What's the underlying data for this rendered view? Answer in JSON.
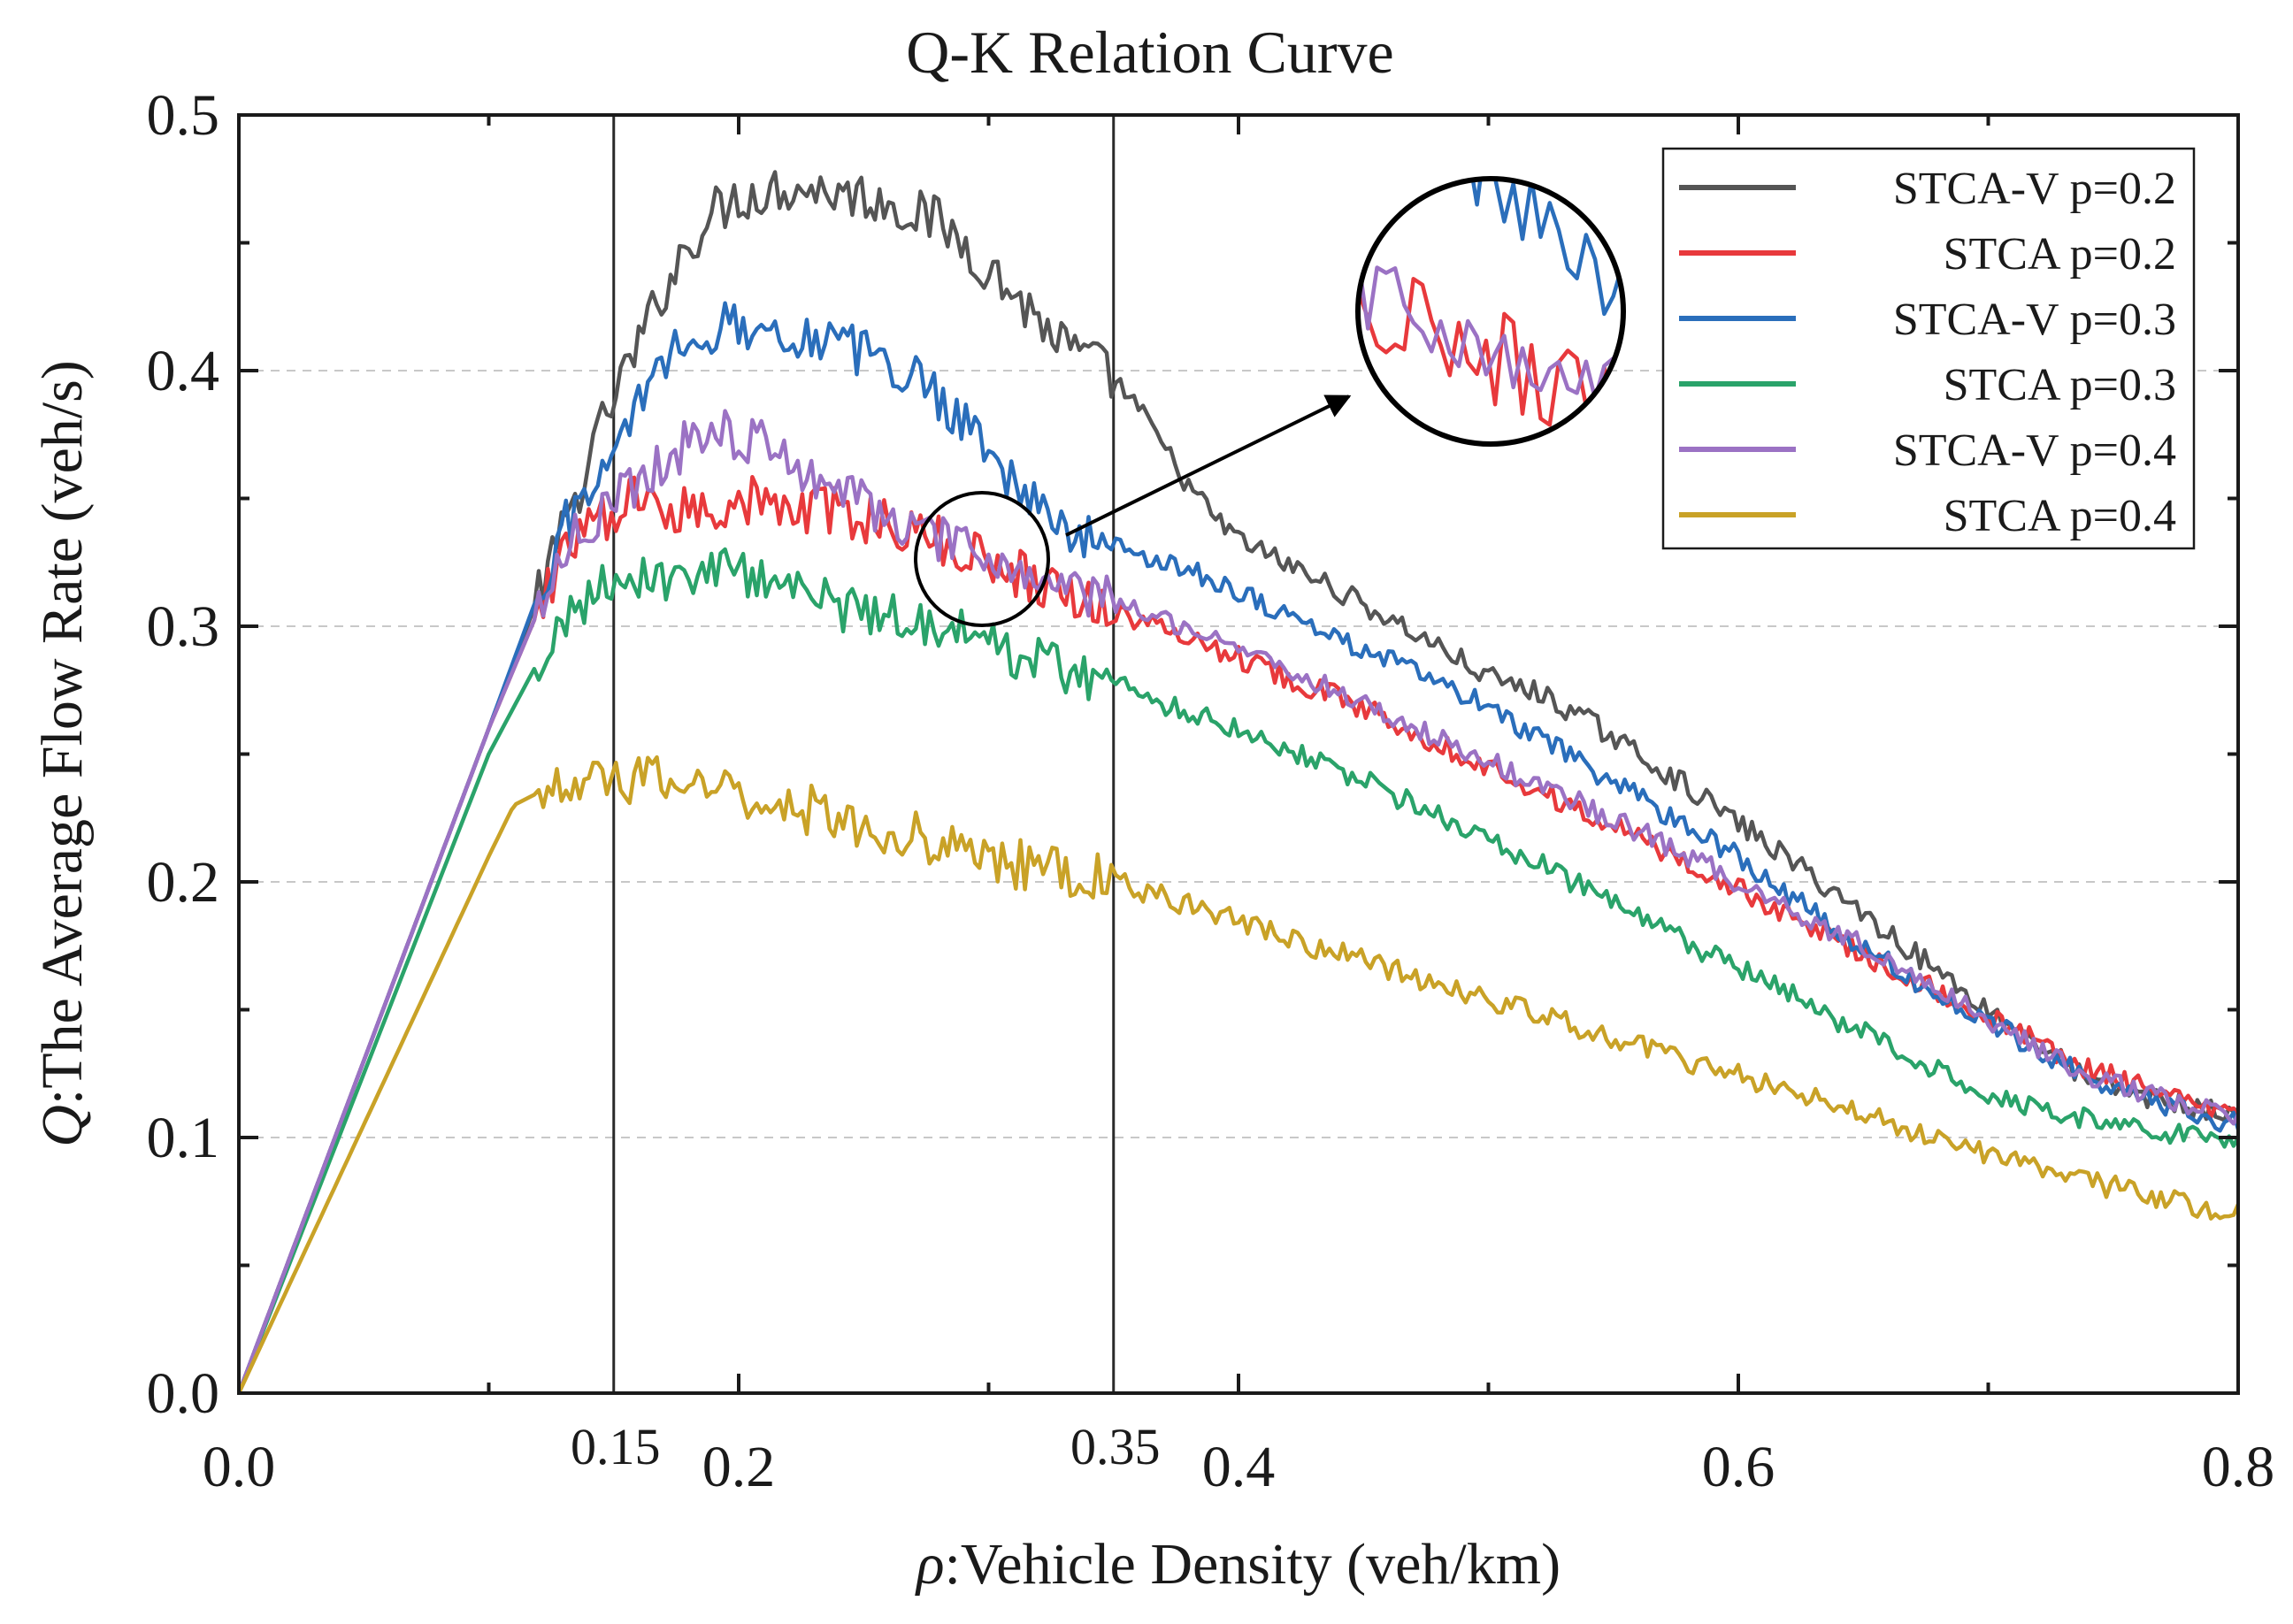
{
  "chart_data": {
    "type": "line",
    "title": "Q-K Relation Curve",
    "xlabel_symbol": "ρ",
    "xlabel": ":Vehicle Density (veh/km)",
    "ylabel_symbol": "Q",
    "ylabel": ":The Average Flow Rate (veh/s)",
    "xlim": [
      0.0,
      0.8
    ],
    "ylim": [
      0.0,
      0.5
    ],
    "x_ticks": [
      {
        "value": 0.0,
        "label": "0.0"
      },
      {
        "value": 0.2,
        "label": "0.2"
      },
      {
        "value": 0.4,
        "label": "0.4"
      },
      {
        "value": 0.6,
        "label": "0.6"
      },
      {
        "value": 0.8,
        "label": "0.8"
      }
    ],
    "x_minor_ticks": [
      0.1,
      0.3,
      0.5,
      0.7
    ],
    "y_ticks": [
      {
        "value": 0.0,
        "label": "0.0"
      },
      {
        "value": 0.1,
        "label": "0.1"
      },
      {
        "value": 0.2,
        "label": "0.2"
      },
      {
        "value": 0.3,
        "label": "0.3"
      },
      {
        "value": 0.4,
        "label": "0.4"
      },
      {
        "value": 0.5,
        "label": "0.5"
      }
    ],
    "y_gridlines": [
      0.1,
      0.2,
      0.3,
      0.4
    ],
    "reference_lines": [
      {
        "x": 0.15,
        "label": "0.15"
      },
      {
        "x": 0.35,
        "label": "0.35"
      }
    ],
    "legend_position": "top-right",
    "series": [
      {
        "name": "STCA-V p=0.2",
        "color": "#555555",
        "points": [
          [
            0,
            0
          ],
          [
            0.05,
            0.13
          ],
          [
            0.1,
            0.26
          ],
          [
            0.13,
            0.338
          ],
          [
            0.15,
            0.39
          ],
          [
            0.16,
            0.41
          ],
          [
            0.17,
            0.432
          ],
          [
            0.18,
            0.45
          ],
          [
            0.19,
            0.462
          ],
          [
            0.2,
            0.468
          ],
          [
            0.21,
            0.47
          ],
          [
            0.22,
            0.472
          ],
          [
            0.23,
            0.471
          ],
          [
            0.24,
            0.47
          ],
          [
            0.25,
            0.468
          ],
          [
            0.26,
            0.466
          ],
          [
            0.27,
            0.462
          ],
          [
            0.28,
            0.458
          ],
          [
            0.29,
            0.45
          ],
          [
            0.3,
            0.44
          ],
          [
            0.31,
            0.43
          ],
          [
            0.32,
            0.42
          ],
          [
            0.33,
            0.41
          ],
          [
            0.34,
            0.404
          ],
          [
            0.35,
            0.397
          ],
          [
            0.36,
            0.385
          ],
          [
            0.37,
            0.37
          ],
          [
            0.38,
            0.355
          ],
          [
            0.39,
            0.343
          ],
          [
            0.4,
            0.334
          ],
          [
            0.42,
            0.324
          ],
          [
            0.44,
            0.314
          ],
          [
            0.46,
            0.303
          ],
          [
            0.48,
            0.292
          ],
          [
            0.5,
            0.28
          ],
          [
            0.52,
            0.274
          ],
          [
            0.54,
            0.263
          ],
          [
            0.56,
            0.25
          ],
          [
            0.58,
            0.237
          ],
          [
            0.6,
            0.223
          ],
          [
            0.62,
            0.209
          ],
          [
            0.64,
            0.195
          ],
          [
            0.66,
            0.18
          ],
          [
            0.68,
            0.165
          ],
          [
            0.7,
            0.15
          ],
          [
            0.72,
            0.137
          ],
          [
            0.74,
            0.122
          ],
          [
            0.76,
            0.117
          ],
          [
            0.78,
            0.112
          ],
          [
            0.8,
            0.108
          ]
        ]
      },
      {
        "name": "STCA p=0.2",
        "color": "#e8393c",
        "points": [
          [
            0,
            0
          ],
          [
            0.05,
            0.13
          ],
          [
            0.1,
            0.26
          ],
          [
            0.13,
            0.33
          ],
          [
            0.15,
            0.345
          ],
          [
            0.16,
            0.35
          ],
          [
            0.18,
            0.345
          ],
          [
            0.2,
            0.35
          ],
          [
            0.22,
            0.345
          ],
          [
            0.24,
            0.345
          ],
          [
            0.26,
            0.34
          ],
          [
            0.28,
            0.333
          ],
          [
            0.3,
            0.326
          ],
          [
            0.32,
            0.318
          ],
          [
            0.34,
            0.31
          ],
          [
            0.36,
            0.302
          ],
          [
            0.38,
            0.296
          ],
          [
            0.4,
            0.288
          ],
          [
            0.42,
            0.28
          ],
          [
            0.44,
            0.272
          ],
          [
            0.46,
            0.264
          ],
          [
            0.48,
            0.254
          ],
          [
            0.5,
            0.245
          ],
          [
            0.52,
            0.236
          ],
          [
            0.54,
            0.226
          ],
          [
            0.56,
            0.217
          ],
          [
            0.58,
            0.207
          ],
          [
            0.6,
            0.197
          ],
          [
            0.62,
            0.187
          ],
          [
            0.64,
            0.177
          ],
          [
            0.66,
            0.167
          ],
          [
            0.68,
            0.157
          ],
          [
            0.7,
            0.147
          ],
          [
            0.72,
            0.137
          ],
          [
            0.74,
            0.127
          ],
          [
            0.76,
            0.12
          ],
          [
            0.78,
            0.113
          ],
          [
            0.8,
            0.108
          ]
        ]
      },
      {
        "name": "STCA-V p=0.3",
        "color": "#2a6ebb",
        "points": [
          [
            0,
            0
          ],
          [
            0.05,
            0.13
          ],
          [
            0.1,
            0.26
          ],
          [
            0.13,
            0.34
          ],
          [
            0.15,
            0.362
          ],
          [
            0.16,
            0.39
          ],
          [
            0.17,
            0.405
          ],
          [
            0.18,
            0.412
          ],
          [
            0.19,
            0.416
          ],
          [
            0.2,
            0.418
          ],
          [
            0.21,
            0.417
          ],
          [
            0.22,
            0.415
          ],
          [
            0.23,
            0.413
          ],
          [
            0.24,
            0.41
          ],
          [
            0.25,
            0.407
          ],
          [
            0.26,
            0.403
          ],
          [
            0.27,
            0.398
          ],
          [
            0.28,
            0.39
          ],
          [
            0.29,
            0.382
          ],
          [
            0.3,
            0.37
          ],
          [
            0.31,
            0.357
          ],
          [
            0.32,
            0.345
          ],
          [
            0.33,
            0.338
          ],
          [
            0.34,
            0.334
          ],
          [
            0.35,
            0.332
          ],
          [
            0.36,
            0.329
          ],
          [
            0.38,
            0.322
          ],
          [
            0.4,
            0.314
          ],
          [
            0.42,
            0.304
          ],
          [
            0.44,
            0.295
          ],
          [
            0.46,
            0.287
          ],
          [
            0.48,
            0.278
          ],
          [
            0.5,
            0.268
          ],
          [
            0.52,
            0.256
          ],
          [
            0.54,
            0.245
          ],
          [
            0.56,
            0.233
          ],
          [
            0.58,
            0.222
          ],
          [
            0.6,
            0.21
          ],
          [
            0.62,
            0.195
          ],
          [
            0.64,
            0.18
          ],
          [
            0.66,
            0.168
          ],
          [
            0.68,
            0.155
          ],
          [
            0.7,
            0.145
          ],
          [
            0.72,
            0.135
          ],
          [
            0.74,
            0.124
          ],
          [
            0.76,
            0.116
          ],
          [
            0.78,
            0.11
          ],
          [
            0.8,
            0.105
          ]
        ]
      },
      {
        "name": "STCA p=0.3",
        "color": "#2aa36a",
        "points": [
          [
            0,
            0
          ],
          [
            0.05,
            0.125
          ],
          [
            0.1,
            0.25
          ],
          [
            0.13,
            0.305
          ],
          [
            0.15,
            0.32
          ],
          [
            0.17,
            0.318
          ],
          [
            0.19,
            0.322
          ],
          [
            0.21,
            0.32
          ],
          [
            0.23,
            0.312
          ],
          [
            0.25,
            0.305
          ],
          [
            0.27,
            0.304
          ],
          [
            0.29,
            0.297
          ],
          [
            0.31,
            0.29
          ],
          [
            0.33,
            0.284
          ],
          [
            0.35,
            0.278
          ],
          [
            0.37,
            0.27
          ],
          [
            0.4,
            0.26
          ],
          [
            0.42,
            0.252
          ],
          [
            0.44,
            0.244
          ],
          [
            0.46,
            0.235
          ],
          [
            0.48,
            0.226
          ],
          [
            0.5,
            0.216
          ],
          [
            0.52,
            0.207
          ],
          [
            0.54,
            0.197
          ],
          [
            0.56,
            0.186
          ],
          [
            0.58,
            0.176
          ],
          [
            0.6,
            0.166
          ],
          [
            0.62,
            0.156
          ],
          [
            0.64,
            0.146
          ],
          [
            0.66,
            0.136
          ],
          [
            0.68,
            0.126
          ],
          [
            0.7,
            0.118
          ],
          [
            0.72,
            0.112
          ],
          [
            0.74,
            0.107
          ],
          [
            0.76,
            0.104
          ],
          [
            0.78,
            0.101
          ],
          [
            0.8,
            0.1
          ]
        ]
      },
      {
        "name": "STCA-V p=0.4",
        "color": "#9b72c4",
        "points": [
          [
            0,
            0
          ],
          [
            0.05,
            0.13
          ],
          [
            0.1,
            0.26
          ],
          [
            0.13,
            0.33
          ],
          [
            0.15,
            0.35
          ],
          [
            0.16,
            0.358
          ],
          [
            0.17,
            0.365
          ],
          [
            0.18,
            0.372
          ],
          [
            0.19,
            0.378
          ],
          [
            0.2,
            0.375
          ],
          [
            0.21,
            0.37
          ],
          [
            0.22,
            0.365
          ],
          [
            0.23,
            0.36
          ],
          [
            0.24,
            0.355
          ],
          [
            0.25,
            0.349
          ],
          [
            0.26,
            0.343
          ],
          [
            0.27,
            0.338
          ],
          [
            0.28,
            0.333
          ],
          [
            0.29,
            0.33
          ],
          [
            0.3,
            0.327
          ],
          [
            0.31,
            0.322
          ],
          [
            0.32,
            0.318
          ],
          [
            0.34,
            0.312
          ],
          [
            0.36,
            0.306
          ],
          [
            0.38,
            0.3
          ],
          [
            0.4,
            0.292
          ],
          [
            0.42,
            0.283
          ],
          [
            0.44,
            0.274
          ],
          [
            0.46,
            0.265
          ],
          [
            0.48,
            0.256
          ],
          [
            0.5,
            0.247
          ],
          [
            0.52,
            0.238
          ],
          [
            0.54,
            0.229
          ],
          [
            0.56,
            0.22
          ],
          [
            0.58,
            0.21
          ],
          [
            0.6,
            0.2
          ],
          [
            0.62,
            0.19
          ],
          [
            0.64,
            0.18
          ],
          [
            0.66,
            0.17
          ],
          [
            0.68,
            0.158
          ],
          [
            0.7,
            0.146
          ],
          [
            0.72,
            0.135
          ],
          [
            0.74,
            0.125
          ],
          [
            0.76,
            0.118
          ],
          [
            0.78,
            0.112
          ],
          [
            0.8,
            0.107
          ]
        ]
      },
      {
        "name": "STCA p=0.4",
        "color": "#c9a227",
        "points": [
          [
            0,
            0
          ],
          [
            0.05,
            0.105
          ],
          [
            0.1,
            0.21
          ],
          [
            0.11,
            0.23
          ],
          [
            0.13,
            0.24
          ],
          [
            0.15,
            0.238
          ],
          [
            0.17,
            0.24
          ],
          [
            0.19,
            0.238
          ],
          [
            0.2,
            0.235
          ],
          [
            0.22,
            0.23
          ],
          [
            0.24,
            0.225
          ],
          [
            0.26,
            0.22
          ],
          [
            0.28,
            0.215
          ],
          [
            0.3,
            0.21
          ],
          [
            0.32,
            0.205
          ],
          [
            0.34,
            0.202
          ],
          [
            0.35,
            0.2
          ],
          [
            0.37,
            0.194
          ],
          [
            0.4,
            0.185
          ],
          [
            0.42,
            0.178
          ],
          [
            0.44,
            0.172
          ],
          [
            0.46,
            0.166
          ],
          [
            0.48,
            0.16
          ],
          [
            0.5,
            0.154
          ],
          [
            0.52,
            0.148
          ],
          [
            0.54,
            0.142
          ],
          [
            0.56,
            0.136
          ],
          [
            0.58,
            0.13
          ],
          [
            0.6,
            0.124
          ],
          [
            0.62,
            0.118
          ],
          [
            0.64,
            0.112
          ],
          [
            0.66,
            0.106
          ],
          [
            0.68,
            0.1
          ],
          [
            0.7,
            0.094
          ],
          [
            0.72,
            0.088
          ],
          [
            0.74,
            0.083
          ],
          [
            0.76,
            0.078
          ],
          [
            0.78,
            0.074
          ],
          [
            0.8,
            0.07
          ]
        ]
      }
    ],
    "zoom_inset": {
      "source_center": [
        0.31,
        0.33
      ],
      "source_x_half_range": 0.026,
      "note": "magnified view of the small circled region"
    }
  }
}
